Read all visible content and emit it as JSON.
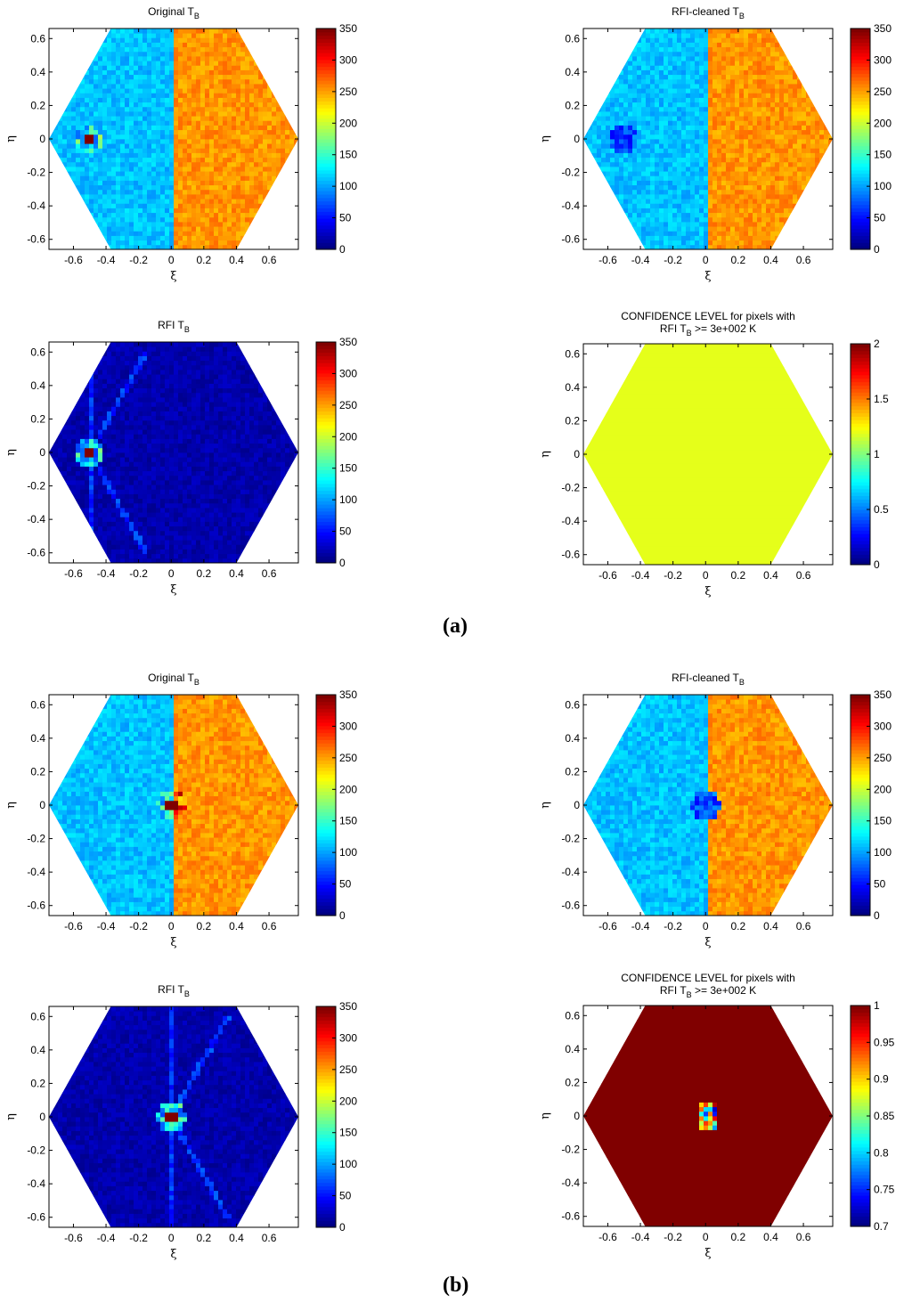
{
  "figure_labels": [
    {
      "id": "a",
      "text_open": "(",
      "letter": "a",
      "text_close": ")"
    },
    {
      "id": "b",
      "text_open": "(",
      "letter": "b",
      "text_close": ")"
    }
  ],
  "colors": {
    "jet_dark_blue": "#00008f",
    "cold_blue": "#2f9bef",
    "warm_orange": "#ff9a24",
    "confidence_green": "#86ff78",
    "dark_red": "#7f0000"
  },
  "chart_data": [
    {
      "id": "a-original",
      "type": "heatmap",
      "title": "Original T",
      "title_sub": "B",
      "title_line2": "",
      "xlabel": "ξ",
      "ylabel": "η",
      "xlim": [
        -0.75,
        0.78
      ],
      "ylim": [
        -0.66,
        0.66
      ],
      "x_ticks": [
        "-0.6",
        "-0.4",
        "-0.2",
        "0",
        "0.2",
        "0.4",
        "0.6"
      ],
      "y_ticks": [
        "0.6",
        "0.4",
        "0.2",
        "0",
        "-0.2",
        "-0.4",
        "-0.6"
      ],
      "colorbar_range": [
        0,
        350
      ],
      "colorbar_ticks": [
        "350",
        "300",
        "250",
        "200",
        "150",
        "100",
        "50",
        "0"
      ],
      "field": "original",
      "split_x": 0.01,
      "left_value_K": 110,
      "right_value_K": 255,
      "rfi_source": [
        -0.5,
        0.0
      ],
      "rfi_peak_K": 350
    },
    {
      "id": "a-cleaned",
      "type": "heatmap",
      "title": "RFI-cleaned T",
      "title_sub": "B",
      "title_line2": "",
      "xlabel": "ξ",
      "ylabel": "η",
      "xlim": [
        -0.75,
        0.78
      ],
      "ylim": [
        -0.66,
        0.66
      ],
      "x_ticks": [
        "-0.6",
        "-0.4",
        "-0.2",
        "0",
        "0.2",
        "0.4",
        "0.6"
      ],
      "y_ticks": [
        "0.6",
        "0.4",
        "0.2",
        "0",
        "-0.2",
        "-0.4",
        "-0.6"
      ],
      "colorbar_range": [
        0,
        350
      ],
      "colorbar_ticks": [
        "350",
        "300",
        "250",
        "200",
        "150",
        "100",
        "50",
        "0"
      ],
      "field": "cleaned",
      "split_x": 0.01,
      "left_value_K": 110,
      "right_value_K": 255,
      "rfi_source": [
        -0.5,
        0.0
      ],
      "rfi_peak_K": 0
    },
    {
      "id": "a-rfi",
      "type": "heatmap",
      "title": "RFI T",
      "title_sub": "B",
      "title_line2": "",
      "xlabel": "ξ",
      "ylabel": "η",
      "xlim": [
        -0.75,
        0.78
      ],
      "ylim": [
        -0.66,
        0.66
      ],
      "x_ticks": [
        "-0.6",
        "-0.4",
        "-0.2",
        "0",
        "0.2",
        "0.4",
        "0.6"
      ],
      "y_ticks": [
        "0.6",
        "0.4",
        "0.2",
        "0",
        "-0.2",
        "-0.4",
        "-0.6"
      ],
      "colorbar_range": [
        0,
        350
      ],
      "colorbar_ticks": [
        "350",
        "300",
        "250",
        "200",
        "150",
        "100",
        "50",
        "0"
      ],
      "field": "rfi",
      "background_K": 5,
      "rfi_source": [
        -0.5,
        0.0
      ],
      "rfi_peak_K": 350
    },
    {
      "id": "a-confidence",
      "type": "heatmap",
      "title": "CONFIDENCE LEVEL for pixels with",
      "title_line2": "RFI T",
      "title_line2_sub": "B",
      "title_line2_tail": " >= 3e+002 K",
      "xlabel": "ξ",
      "ylabel": "η",
      "xlim": [
        -0.75,
        0.78
      ],
      "ylim": [
        -0.66,
        0.66
      ],
      "x_ticks": [
        "-0.6",
        "-0.4",
        "-0.2",
        "0",
        "0.2",
        "0.4",
        "0.6"
      ],
      "y_ticks": [
        "0.6",
        "0.4",
        "0.2",
        "0",
        "-0.2",
        "-0.4",
        "-0.6"
      ],
      "colorbar_range": [
        0,
        2
      ],
      "colorbar_ticks": [
        "2",
        "1.5",
        "1",
        "0.5",
        "0"
      ],
      "field": "uniform",
      "uniform_value": 1.2
    },
    {
      "id": "b-original",
      "type": "heatmap",
      "title": "Original T",
      "title_sub": "B",
      "title_line2": "",
      "xlabel": "ξ",
      "ylabel": "η",
      "xlim": [
        -0.75,
        0.78
      ],
      "ylim": [
        -0.66,
        0.66
      ],
      "x_ticks": [
        "-0.6",
        "-0.4",
        "-0.2",
        "0",
        "0.2",
        "0.4",
        "0.6"
      ],
      "y_ticks": [
        "0.6",
        "0.4",
        "0.2",
        "0",
        "-0.2",
        "-0.4",
        "-0.6"
      ],
      "colorbar_range": [
        0,
        350
      ],
      "colorbar_ticks": [
        "350",
        "300",
        "250",
        "200",
        "150",
        "100",
        "50",
        "0"
      ],
      "field": "original",
      "split_x": 0.02,
      "left_value_K": 110,
      "right_value_K": 255,
      "rfi_source": [
        0.0,
        0.0
      ],
      "rfi_peak_K": 350
    },
    {
      "id": "b-cleaned",
      "type": "heatmap",
      "title": "RFI-cleaned T",
      "title_sub": "B",
      "title_line2": "",
      "xlabel": "ξ",
      "ylabel": "η",
      "xlim": [
        -0.75,
        0.78
      ],
      "ylim": [
        -0.66,
        0.66
      ],
      "x_ticks": [
        "-0.6",
        "-0.4",
        "-0.2",
        "0",
        "0.2",
        "0.4",
        "0.6"
      ],
      "y_ticks": [
        "0.6",
        "0.4",
        "0.2",
        "0",
        "-0.2",
        "-0.4",
        "-0.6"
      ],
      "colorbar_range": [
        0,
        350
      ],
      "colorbar_ticks": [
        "350",
        "300",
        "250",
        "200",
        "150",
        "100",
        "50",
        "0"
      ],
      "field": "cleaned",
      "split_x": 0.02,
      "left_value_K": 110,
      "right_value_K": 255,
      "rfi_source": [
        0.0,
        0.0
      ],
      "rfi_peak_K": 0
    },
    {
      "id": "b-rfi",
      "type": "heatmap",
      "title": "RFI T",
      "title_sub": "B",
      "title_line2": "",
      "xlabel": "ξ",
      "ylabel": "η",
      "xlim": [
        -0.75,
        0.78
      ],
      "ylim": [
        -0.66,
        0.66
      ],
      "x_ticks": [
        "-0.6",
        "-0.4",
        "-0.2",
        "0",
        "0.2",
        "0.4",
        "0.6"
      ],
      "y_ticks": [
        "0.6",
        "0.4",
        "0.2",
        "0",
        "-0.2",
        "-0.4",
        "-0.6"
      ],
      "colorbar_range": [
        0,
        350
      ],
      "colorbar_ticks": [
        "350",
        "300",
        "250",
        "200",
        "150",
        "100",
        "50",
        "0"
      ],
      "field": "rfi",
      "background_K": 5,
      "rfi_source": [
        0.0,
        0.0
      ],
      "rfi_peak_K": 350
    },
    {
      "id": "b-confidence",
      "type": "heatmap",
      "title": "CONFIDENCE LEVEL for pixels with",
      "title_line2": "RFI T",
      "title_line2_sub": "B",
      "title_line2_tail": " >= 3e+002 K",
      "xlabel": "ξ",
      "ylabel": "η",
      "xlim": [
        -0.75,
        0.78
      ],
      "ylim": [
        -0.66,
        0.66
      ],
      "x_ticks": [
        "-0.6",
        "-0.4",
        "-0.2",
        "0",
        "0.2",
        "0.4",
        "0.6"
      ],
      "y_ticks": [
        "0.6",
        "0.4",
        "0.2",
        "0",
        "-0.2",
        "-0.4",
        "-0.6"
      ],
      "colorbar_range": [
        0.7,
        1
      ],
      "colorbar_ticks": [
        "1",
        "0.95",
        "0.9",
        "0.85",
        "0.8",
        "0.75",
        "0.7"
      ],
      "field": "confidence_hole",
      "uniform_value": 1.0,
      "hole_center": [
        0.02,
        0.0
      ],
      "hole_min_value": 0.7
    }
  ]
}
